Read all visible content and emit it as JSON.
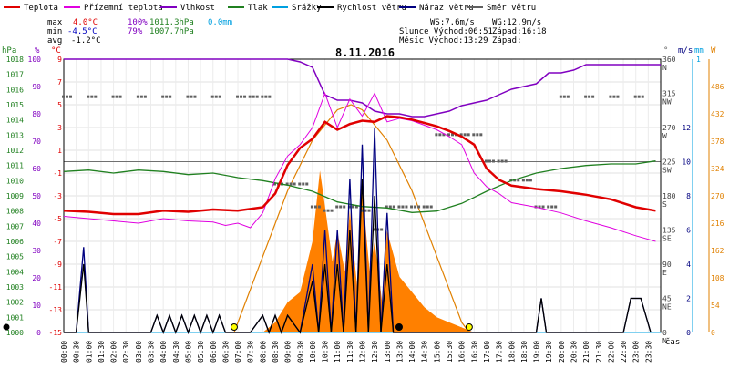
{
  "legend": [
    {
      "label": "Teplota",
      "color": "#e00000"
    },
    {
      "label": "Přízemní teplota",
      "color": "#e000e0"
    },
    {
      "label": "Vlhkost",
      "color": "#8000c0"
    },
    {
      "label": "Tlak",
      "color": "#208020"
    },
    {
      "label": "Srážky",
      "color": "#00a0e0"
    },
    {
      "label": "Rychlost větru",
      "color": "#000000"
    },
    {
      "label": "Náraz větru",
      "color": "#000080"
    },
    {
      "label": "Směr větru",
      "color": "#606060"
    }
  ],
  "stats": {
    "max_label": "max",
    "max_temp": "4.0°C",
    "max_hum": "100%",
    "max_press": "1011.3hPa",
    "max_rain": "0.0mm",
    "min_label": "min",
    "min_temp": "-4.5°C",
    "min_hum": "79%",
    "min_press": "1007.7hPa",
    "avg_label": "avg",
    "avg_temp": "-1.2°C",
    "ws": "WS:7.6m/s",
    "wg": "WG:12.9m/s",
    "sun": "Slunce Východ:06:51",
    "sun_set": "Západ:16:18",
    "moon": "Měsíc  Východ:13:29",
    "moon_set": "Západ:"
  },
  "date": "8.11.2016",
  "axis_units": {
    "hpa": "hPa",
    "pct": "%",
    "degc": "°C",
    "deg": "°",
    "ms": "m/s",
    "mm": "mm",
    "wm2": "W",
    "time": "čas"
  },
  "colors": {
    "temp": "#e00000",
    "ground": "#e000e0",
    "hum": "#8000c0",
    "press": "#208020",
    "rain": "#00a0e0",
    "wind": "#000000",
    "gust": "#000080",
    "dir": "#606060",
    "solar": "#ff8000",
    "solar_line": "#e08000"
  },
  "chart_data": {
    "type": "line",
    "x_unit": "hours",
    "xlim": [
      0,
      24
    ],
    "x_tick_labels": [
      "00:00",
      "00:30",
      "01:00",
      "01:30",
      "02:00",
      "02:30",
      "03:00",
      "03:30",
      "04:00",
      "04:30",
      "05:00",
      "05:30",
      "06:00",
      "06:30",
      "07:00",
      "07:30",
      "08:00",
      "08:30",
      "09:00",
      "09:30",
      "10:00",
      "10:30",
      "11:00",
      "11:30",
      "12:00",
      "12:30",
      "13:00",
      "13:30",
      "14:00",
      "14:30",
      "15:00",
      "15:30",
      "16:00",
      "16:30",
      "17:00",
      "17:30",
      "18:00",
      "18:30",
      "19:00",
      "19:30",
      "20:00",
      "20:30",
      "21:00",
      "21:30",
      "22:00",
      "22:30",
      "23:00",
      "23:30"
    ],
    "y_axes": {
      "hpa": {
        "range": [
          1000,
          1018
        ],
        "ticks": [
          "1018",
          "1017",
          "1016",
          "1015",
          "1014",
          "1013",
          "1012",
          "1011",
          "1010",
          "1009",
          "1008",
          "1007",
          "1006",
          "1005",
          "1004",
          "1003",
          "1002",
          "1001",
          "1000"
        ]
      },
      "pct": {
        "range": [
          0,
          100
        ],
        "ticks": [
          "100",
          "90",
          "80",
          "70",
          "60",
          "50",
          "40",
          "30",
          "20",
          "10",
          "0"
        ]
      },
      "degc": {
        "range": [
          -15,
          9
        ],
        "ticks": [
          "9",
          "7",
          "5",
          "3",
          "1",
          "-1",
          "-3",
          "-5",
          "-7",
          "-9",
          "-11",
          "-13",
          "-15"
        ]
      },
      "deg": {
        "ticks": [
          "360",
          "315",
          "270",
          "225",
          "180",
          "135",
          "90",
          "45",
          "0"
        ]
      },
      "dir_letters": [
        "N",
        "NW",
        "W",
        "SW",
        "S",
        "SE",
        "E",
        "NE",
        "N"
      ],
      "ms": {
        "range": [
          0,
          16
        ],
        "ticks": [
          "12",
          "10",
          "8",
          "6",
          "4",
          "2",
          "0"
        ]
      },
      "mm": {
        "ticks": [
          "1"
        ]
      },
      "wm2": {
        "range": [
          0,
          540
        ],
        "ticks": [
          "486",
          "432",
          "378",
          "324",
          "270",
          "216",
          "162",
          "108",
          "54",
          "0"
        ]
      }
    },
    "series": [
      {
        "name": "Teplota",
        "axis": "degc",
        "x": [
          0,
          1,
          2,
          3,
          4,
          5,
          6,
          7,
          8,
          8.5,
          9,
          9.5,
          10,
          10.5,
          11,
          11.5,
          12,
          12.5,
          13,
          13.5,
          14,
          14.5,
          15,
          15.5,
          16,
          16.5,
          17,
          17.5,
          18,
          19,
          20,
          21,
          22,
          23,
          23.8
        ],
        "y": [
          -4.3,
          -4.4,
          -4.6,
          -4.6,
          -4.3,
          -4.4,
          -4.2,
          -4.3,
          -4.0,
          -2.8,
          -0.3,
          1.2,
          2.0,
          3.5,
          2.8,
          3.3,
          3.6,
          3.5,
          4.0,
          3.9,
          3.7,
          3.4,
          3.1,
          2.7,
          2.2,
          1.5,
          -0.6,
          -1.6,
          -2.1,
          -2.4,
          -2.6,
          -2.9,
          -3.3,
          -4.0,
          -4.3
        ]
      },
      {
        "name": "Přízemní teplota",
        "axis": "degc",
        "x": [
          0,
          1,
          2,
          3,
          4,
          5,
          6,
          6.5,
          7,
          7.5,
          8,
          8.5,
          9,
          9.5,
          10,
          10.5,
          11,
          11.5,
          12,
          12.5,
          13,
          13.5,
          14,
          15,
          15.5,
          16,
          16.5,
          17,
          17.5,
          18,
          19,
          20,
          21,
          22,
          23,
          23.8
        ],
        "y": [
          -4.8,
          -5.0,
          -5.2,
          -5.4,
          -5.0,
          -5.2,
          -5.3,
          -5.6,
          -5.4,
          -5.8,
          -4.5,
          -1.5,
          0.5,
          1.5,
          3.0,
          6.0,
          3.0,
          5.5,
          4.0,
          6.0,
          3.5,
          3.8,
          3.6,
          2.8,
          2.2,
          1.5,
          -1.0,
          -2.2,
          -2.8,
          -3.6,
          -4.0,
          -4.5,
          -5.2,
          -5.8,
          -6.5,
          -7.0
        ]
      },
      {
        "name": "Vlhkost",
        "axis": "pct",
        "x": [
          0,
          9,
          9.5,
          10,
          10.5,
          11,
          11.5,
          12,
          12.5,
          13,
          13.5,
          14,
          14.5,
          15,
          15.5,
          16,
          16.5,
          17,
          17.5,
          18,
          18.5,
          19,
          19.5,
          20,
          20.5,
          21,
          21.5,
          22,
          23,
          24
        ],
        "y": [
          100,
          100,
          99,
          97,
          87,
          85,
          85,
          84,
          81,
          80,
          80,
          79,
          79,
          80,
          81,
          83,
          84,
          85,
          87,
          89,
          90,
          91,
          95,
          95,
          96,
          98,
          98,
          98,
          98,
          98
        ]
      },
      {
        "name": "Tlak",
        "axis": "hpa",
        "x": [
          0,
          1,
          2,
          3,
          4,
          5,
          6,
          7,
          8,
          9,
          10,
          11,
          12,
          13,
          14,
          15,
          16,
          17,
          18,
          19,
          20,
          21,
          22,
          23,
          23.8
        ],
        "y": [
          1010.6,
          1010.7,
          1010.5,
          1010.7,
          1010.6,
          1010.4,
          1010.5,
          1010.2,
          1010.0,
          1009.7,
          1009.3,
          1008.6,
          1008.3,
          1008.2,
          1007.9,
          1008.0,
          1008.5,
          1009.3,
          1010.0,
          1010.5,
          1010.8,
          1011.0,
          1011.1,
          1011.1,
          1011.3
        ]
      },
      {
        "name": "Srážky",
        "axis": "mm",
        "x": [
          0,
          24
        ],
        "y": [
          0,
          0
        ]
      },
      {
        "name": "Rychlost větru",
        "axis": "ms",
        "x": [
          0,
          0.5,
          0.8,
          1.0,
          3.5,
          3.75,
          4.0,
          4.25,
          4.5,
          4.75,
          5.0,
          5.25,
          5.5,
          5.75,
          6.0,
          6.25,
          6.5,
          7.5,
          8.0,
          8.25,
          8.5,
          8.75,
          9.0,
          9.5,
          10.0,
          10.25,
          10.5,
          10.75,
          11.0,
          11.25,
          11.5,
          11.75,
          12.0,
          12.25,
          12.5,
          12.75,
          13.0,
          13.25,
          13.5,
          19.0,
          19.2,
          19.4,
          22.5,
          22.8,
          23.2,
          23.6
        ],
        "y": [
          0,
          0,
          4,
          0,
          0,
          1,
          0,
          1,
          0,
          1,
          0,
          1,
          0,
          1,
          0,
          1,
          0,
          0,
          1,
          0,
          1,
          0,
          1,
          0,
          3,
          0,
          4,
          0,
          4,
          0,
          6,
          0,
          9,
          0,
          8,
          0,
          4,
          0,
          0,
          0,
          2,
          0,
          0,
          2,
          2,
          0
        ]
      },
      {
        "name": "Náraz větru",
        "axis": "ms",
        "x": [
          0,
          0.5,
          0.8,
          1.0,
          3.5,
          3.75,
          4.0,
          4.25,
          4.5,
          4.75,
          5.0,
          5.25,
          5.5,
          5.75,
          6.0,
          6.25,
          6.5,
          7.5,
          8.0,
          8.25,
          8.5,
          8.75,
          9.0,
          9.5,
          10.0,
          10.25,
          10.5,
          10.75,
          11.0,
          11.25,
          11.5,
          11.75,
          12.0,
          12.25,
          12.5,
          12.75,
          13.0,
          13.25,
          13.5,
          19.0,
          19.2,
          19.4,
          22.5,
          22.8,
          23.2,
          23.6
        ],
        "y": [
          0,
          0,
          5,
          0,
          0,
          1,
          0,
          1,
          0,
          1,
          0,
          1,
          0,
          1,
          0,
          1,
          0,
          0,
          1,
          0,
          1,
          0,
          1,
          0,
          4,
          0,
          6,
          0,
          6,
          0,
          9,
          0,
          11,
          0,
          12,
          0,
          7,
          0,
          0,
          0,
          2,
          0,
          0,
          2,
          2,
          0
        ]
      },
      {
        "name": "Směr větru",
        "axis": "deg",
        "x": [
          0,
          1,
          2,
          3,
          4,
          5,
          6,
          7,
          7.5,
          8,
          8.5,
          9,
          9.5,
          10,
          10.5,
          11,
          11.5,
          12,
          12.5,
          13,
          13.5,
          14,
          14.5,
          15,
          15.5,
          16,
          16.5,
          17,
          17.5,
          18,
          18.5,
          19,
          19.5,
          20,
          21,
          22,
          23
        ],
        "y": [
          310,
          310,
          310,
          310,
          310,
          310,
          310,
          310,
          310,
          310,
          195,
          195,
          195,
          165,
          160,
          165,
          165,
          160,
          135,
          165,
          165,
          165,
          165,
          260,
          260,
          260,
          260,
          225,
          225,
          200,
          200,
          165,
          165,
          310,
          310,
          310,
          310
        ]
      },
      {
        "name": "Sluneční záření",
        "axis": "wm2",
        "x": [
          8,
          8.5,
          9,
          9.5,
          10,
          10.3,
          10.5,
          10.8,
          11,
          11.3,
          11.5,
          11.8,
          12,
          12.3,
          12.5,
          12.8,
          13,
          13.5,
          14,
          14.5,
          15,
          15.5,
          16,
          16.5
        ],
        "y": [
          0,
          20,
          60,
          80,
          180,
          320,
          250,
          140,
          200,
          120,
          240,
          90,
          280,
          120,
          180,
          60,
          200,
          110,
          80,
          50,
          30,
          20,
          10,
          0
        ]
      },
      {
        "name": "Maximální záření",
        "axis": "wm2",
        "x": [
          6.85,
          8,
          9,
          10,
          11,
          11.55,
          12,
          13,
          14,
          15,
          16,
          16.3
        ],
        "y": [
          0,
          150,
          280,
          380,
          440,
          450,
          440,
          380,
          280,
          150,
          20,
          0
        ]
      }
    ],
    "events": {
      "sunrise": "06:51",
      "sunset": "16:18",
      "moonrise": "13:29"
    }
  }
}
